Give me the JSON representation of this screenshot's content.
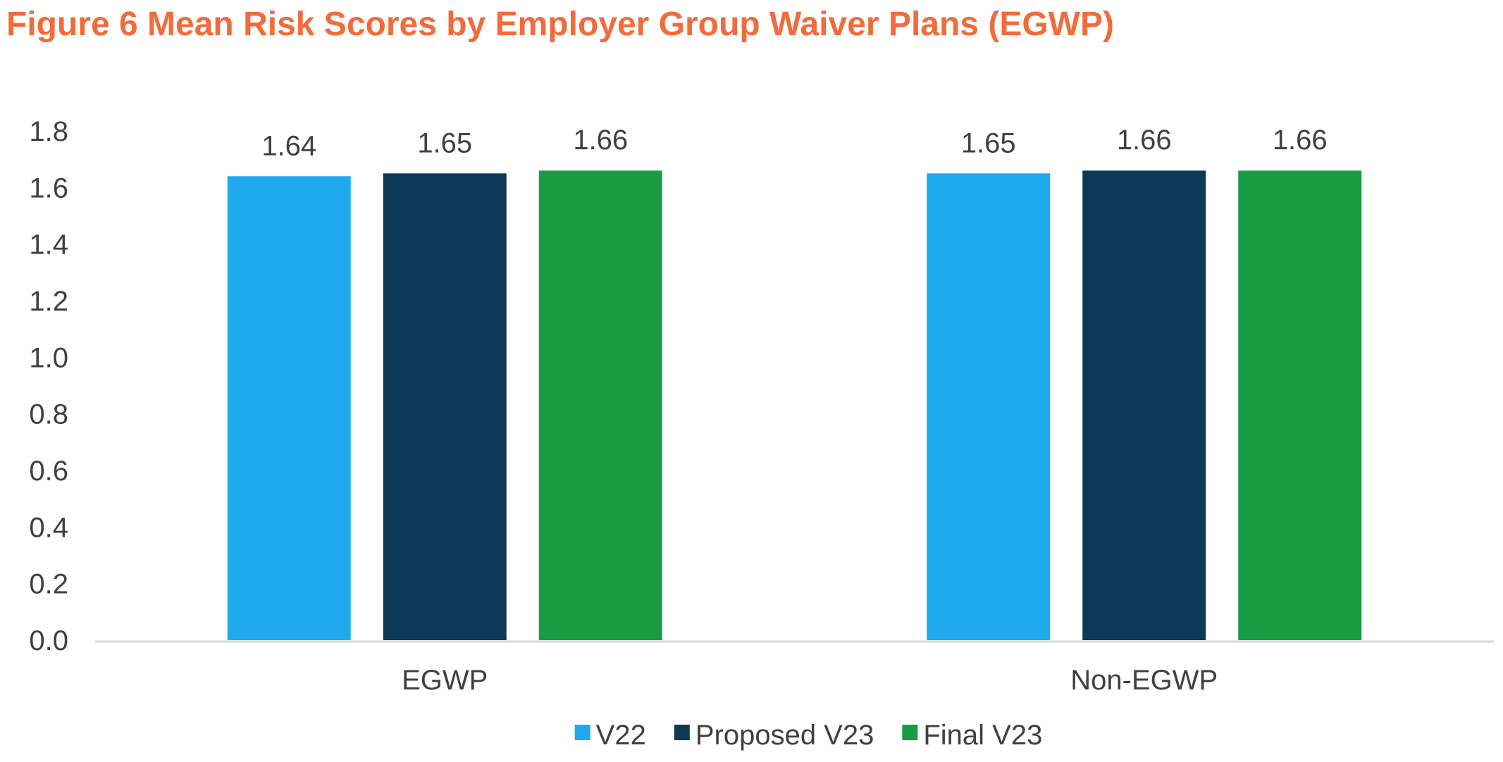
{
  "chart_data": {
    "type": "bar",
    "title": "Figure 6 Mean Risk Scores by Employer Group Waiver Plans (EGWP)",
    "xlabel": "",
    "ylabel": "",
    "categories": [
      "EGWP",
      "Non-EGWP"
    ],
    "series": [
      {
        "name": "V22",
        "color": "#1faaee",
        "values": [
          1.64,
          1.65
        ],
        "labels": [
          "1.64",
          "1.65"
        ]
      },
      {
        "name": "Proposed V23",
        "color": "#0d3856",
        "values": [
          1.65,
          1.66
        ],
        "labels": [
          "1.65",
          "1.66"
        ]
      },
      {
        "name": "Final V23",
        "color": "#189c43",
        "values": [
          1.66,
          1.66
        ],
        "labels": [
          "1.66",
          "1.66"
        ]
      }
    ],
    "ylim": [
      0,
      1.8
    ],
    "yticks": [
      "0.0",
      "0.2",
      "0.4",
      "0.6",
      "0.8",
      "1.0",
      "1.2",
      "1.4",
      "1.6",
      "1.8"
    ],
    "grid": false,
    "legend_position": "bottom-center"
  },
  "colors": {
    "title": "#f26b3a",
    "axis_line": "#d9d9d9",
    "text": "#404040"
  }
}
